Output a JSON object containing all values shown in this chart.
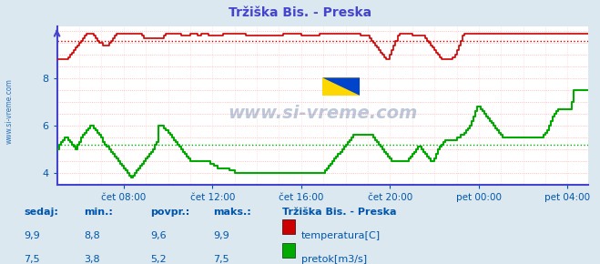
{
  "title": "Tržiška Bis. - Preska",
  "bg_color": "#dce8f0",
  "plot_bg_color": "#ffffff",
  "grid_color_h": "#ffaaaa",
  "grid_color_v": "#ffcccc",
  "red_color": "#cc0000",
  "green_color": "#00aa00",
  "axis_color": "#4444cc",
  "text_color": "#0055aa",
  "watermark": "www.si-vreme.com",
  "yticks": [
    4,
    6,
    8
  ],
  "ylim": [
    3.5,
    10.2
  ],
  "xlim": [
    0,
    287
  ],
  "xlabel_ticks": [
    36,
    84,
    132,
    180,
    228,
    276
  ],
  "xlabel_labels": [
    "čet 08:00",
    "čet 12:00",
    "čet 16:00",
    "čet 20:00",
    "pet 00:00",
    "pet 04:00"
  ],
  "temp_avg": 9.6,
  "flow_avg": 5.2,
  "legend_title": "Tržiška Bis. - Preska",
  "legend_items": [
    "temperatura[C]",
    "pretok[m3/s]"
  ],
  "table_headers": [
    "sedaj:",
    "min.:",
    "povpr.:",
    "maks.:"
  ],
  "temp_row": [
    "9,9",
    "8,8",
    "9,6",
    "9,9"
  ],
  "flow_row": [
    "7,5",
    "3,8",
    "5,2",
    "7,5"
  ],
  "temp_data": [
    8.8,
    8.8,
    8.8,
    8.8,
    8.8,
    8.8,
    8.9,
    9.0,
    9.1,
    9.2,
    9.3,
    9.4,
    9.5,
    9.6,
    9.7,
    9.8,
    9.9,
    9.9,
    9.9,
    9.9,
    9.8,
    9.7,
    9.6,
    9.5,
    9.5,
    9.4,
    9.4,
    9.4,
    9.5,
    9.6,
    9.7,
    9.8,
    9.9,
    9.9,
    9.9,
    9.9,
    9.9,
    9.9,
    9.9,
    9.9,
    9.9,
    9.9,
    9.9,
    9.9,
    9.9,
    9.9,
    9.8,
    9.7,
    9.7,
    9.7,
    9.7,
    9.7,
    9.7,
    9.7,
    9.7,
    9.7,
    9.7,
    9.7,
    9.8,
    9.9,
    9.9,
    9.9,
    9.9,
    9.9,
    9.9,
    9.9,
    9.9,
    9.8,
    9.8,
    9.8,
    9.8,
    9.8,
    9.9,
    9.9,
    9.9,
    9.9,
    9.8,
    9.8,
    9.9,
    9.9,
    9.9,
    9.9,
    9.8,
    9.8,
    9.8,
    9.8,
    9.8,
    9.8,
    9.8,
    9.8,
    9.9,
    9.9,
    9.9,
    9.9,
    9.9,
    9.9,
    9.9,
    9.9,
    9.9,
    9.9,
    9.9,
    9.9,
    9.8,
    9.8,
    9.8,
    9.8,
    9.8,
    9.8,
    9.8,
    9.8,
    9.8,
    9.8,
    9.8,
    9.8,
    9.8,
    9.8,
    9.8,
    9.8,
    9.8,
    9.8,
    9.8,
    9.8,
    9.9,
    9.9,
    9.9,
    9.9,
    9.9,
    9.9,
    9.9,
    9.9,
    9.9,
    9.9,
    9.8,
    9.8,
    9.8,
    9.8,
    9.8,
    9.8,
    9.8,
    9.8,
    9.8,
    9.8,
    9.9,
    9.9,
    9.9,
    9.9,
    9.9,
    9.9,
    9.9,
    9.9,
    9.9,
    9.9,
    9.9,
    9.9,
    9.9,
    9.9,
    9.9,
    9.9,
    9.9,
    9.9,
    9.9,
    9.9,
    9.9,
    9.9,
    9.8,
    9.8,
    9.8,
    9.8,
    9.8,
    9.7,
    9.6,
    9.5,
    9.4,
    9.3,
    9.2,
    9.1,
    9.0,
    8.9,
    8.8,
    8.8,
    9.0,
    9.2,
    9.4,
    9.6,
    9.8,
    9.9,
    9.9,
    9.9,
    9.9,
    9.9,
    9.9,
    9.9,
    9.8,
    9.8,
    9.8,
    9.8,
    9.8,
    9.8,
    9.8,
    9.7,
    9.6,
    9.5,
    9.4,
    9.3,
    9.2,
    9.1,
    9.0,
    8.9,
    8.8,
    8.8,
    8.8,
    8.8,
    8.8,
    8.8,
    8.9,
    9.0,
    9.2,
    9.4,
    9.6,
    9.8,
    9.9,
    9.9,
    9.9,
    9.9,
    9.9,
    9.9,
    9.9,
    9.9,
    9.9,
    9.9,
    9.9,
    9.9,
    9.9,
    9.9,
    9.9,
    9.9,
    9.9,
    9.9,
    9.9,
    9.9,
    9.9,
    9.9,
    9.9,
    9.9,
    9.9,
    9.9,
    9.9,
    9.9,
    9.9,
    9.9,
    9.9,
    9.9,
    9.9,
    9.9,
    9.9,
    9.9,
    9.9,
    9.9,
    9.9,
    9.9,
    9.9,
    9.9,
    9.9,
    9.9,
    9.9,
    9.9,
    9.9,
    9.9,
    9.9,
    9.9,
    9.9,
    9.9,
    9.9,
    9.9,
    9.9,
    9.9,
    9.9,
    9.9,
    9.9,
    9.9,
    9.9,
    9.9,
    9.9,
    9.9,
    9.9,
    9.9,
    9.9,
    9.9
  ],
  "flow_data": [
    5.0,
    5.2,
    5.3,
    5.4,
    5.5,
    5.5,
    5.4,
    5.3,
    5.2,
    5.1,
    5.0,
    5.2,
    5.3,
    5.5,
    5.6,
    5.7,
    5.8,
    5.9,
    6.0,
    6.0,
    5.9,
    5.8,
    5.7,
    5.6,
    5.5,
    5.3,
    5.2,
    5.1,
    5.0,
    4.9,
    4.8,
    4.7,
    4.6,
    4.5,
    4.4,
    4.3,
    4.2,
    4.1,
    4.0,
    3.9,
    3.8,
    3.9,
    4.0,
    4.1,
    4.2,
    4.3,
    4.4,
    4.5,
    4.6,
    4.7,
    4.8,
    4.9,
    5.0,
    5.2,
    5.3,
    6.0,
    6.0,
    6.0,
    5.9,
    5.8,
    5.7,
    5.6,
    5.5,
    5.4,
    5.3,
    5.2,
    5.1,
    5.0,
    4.9,
    4.8,
    4.7,
    4.6,
    4.5,
    4.5,
    4.5,
    4.5,
    4.5,
    4.5,
    4.5,
    4.5,
    4.5,
    4.5,
    4.5,
    4.4,
    4.4,
    4.3,
    4.3,
    4.2,
    4.2,
    4.2,
    4.2,
    4.2,
    4.2,
    4.1,
    4.1,
    4.1,
    4.0,
    4.0,
    4.0,
    4.0,
    4.0,
    4.0,
    4.0,
    4.0,
    4.0,
    4.0,
    4.0,
    4.0,
    4.0,
    4.0,
    4.0,
    4.0,
    4.0,
    4.0,
    4.0,
    4.0,
    4.0,
    4.0,
    4.0,
    4.0,
    4.0,
    4.0,
    4.0,
    4.0,
    4.0,
    4.0,
    4.0,
    4.0,
    4.0,
    4.0,
    4.0,
    4.0,
    4.0,
    4.0,
    4.0,
    4.0,
    4.0,
    4.0,
    4.0,
    4.0,
    4.0,
    4.0,
    4.0,
    4.0,
    4.0,
    4.1,
    4.2,
    4.3,
    4.4,
    4.5,
    4.6,
    4.7,
    4.8,
    4.9,
    5.0,
    5.1,
    5.2,
    5.3,
    5.4,
    5.5,
    5.6,
    5.6,
    5.6,
    5.6,
    5.6,
    5.6,
    5.6,
    5.6,
    5.6,
    5.6,
    5.6,
    5.5,
    5.4,
    5.3,
    5.2,
    5.1,
    5.0,
    4.9,
    4.8,
    4.7,
    4.6,
    4.5,
    4.5,
    4.5,
    4.5,
    4.5,
    4.5,
    4.5,
    4.5,
    4.5,
    4.6,
    4.7,
    4.8,
    4.9,
    5.0,
    5.1,
    5.1,
    5.0,
    4.9,
    4.8,
    4.7,
    4.6,
    4.5,
    4.5,
    4.6,
    4.8,
    5.0,
    5.1,
    5.2,
    5.3,
    5.4,
    5.4,
    5.4,
    5.4,
    5.4,
    5.4,
    5.5,
    5.5,
    5.6,
    5.6,
    5.7,
    5.8,
    5.9,
    6.0,
    6.2,
    6.4,
    6.6,
    6.8,
    6.8,
    6.7,
    6.6,
    6.5,
    6.4,
    6.3,
    6.2,
    6.1,
    6.0,
    5.9,
    5.8,
    5.7,
    5.6,
    5.5,
    5.5,
    5.5,
    5.5,
    5.5,
    5.5,
    5.5,
    5.5,
    5.5,
    5.5,
    5.5,
    5.5,
    5.5,
    5.5,
    5.5,
    5.5,
    5.5,
    5.5,
    5.5,
    5.5,
    5.5,
    5.5,
    5.6,
    5.7,
    5.8,
    6.0,
    6.2,
    6.4,
    6.5,
    6.6,
    6.7,
    6.7,
    6.7,
    6.7,
    6.7,
    6.7,
    6.7,
    7.0,
    7.5
  ]
}
